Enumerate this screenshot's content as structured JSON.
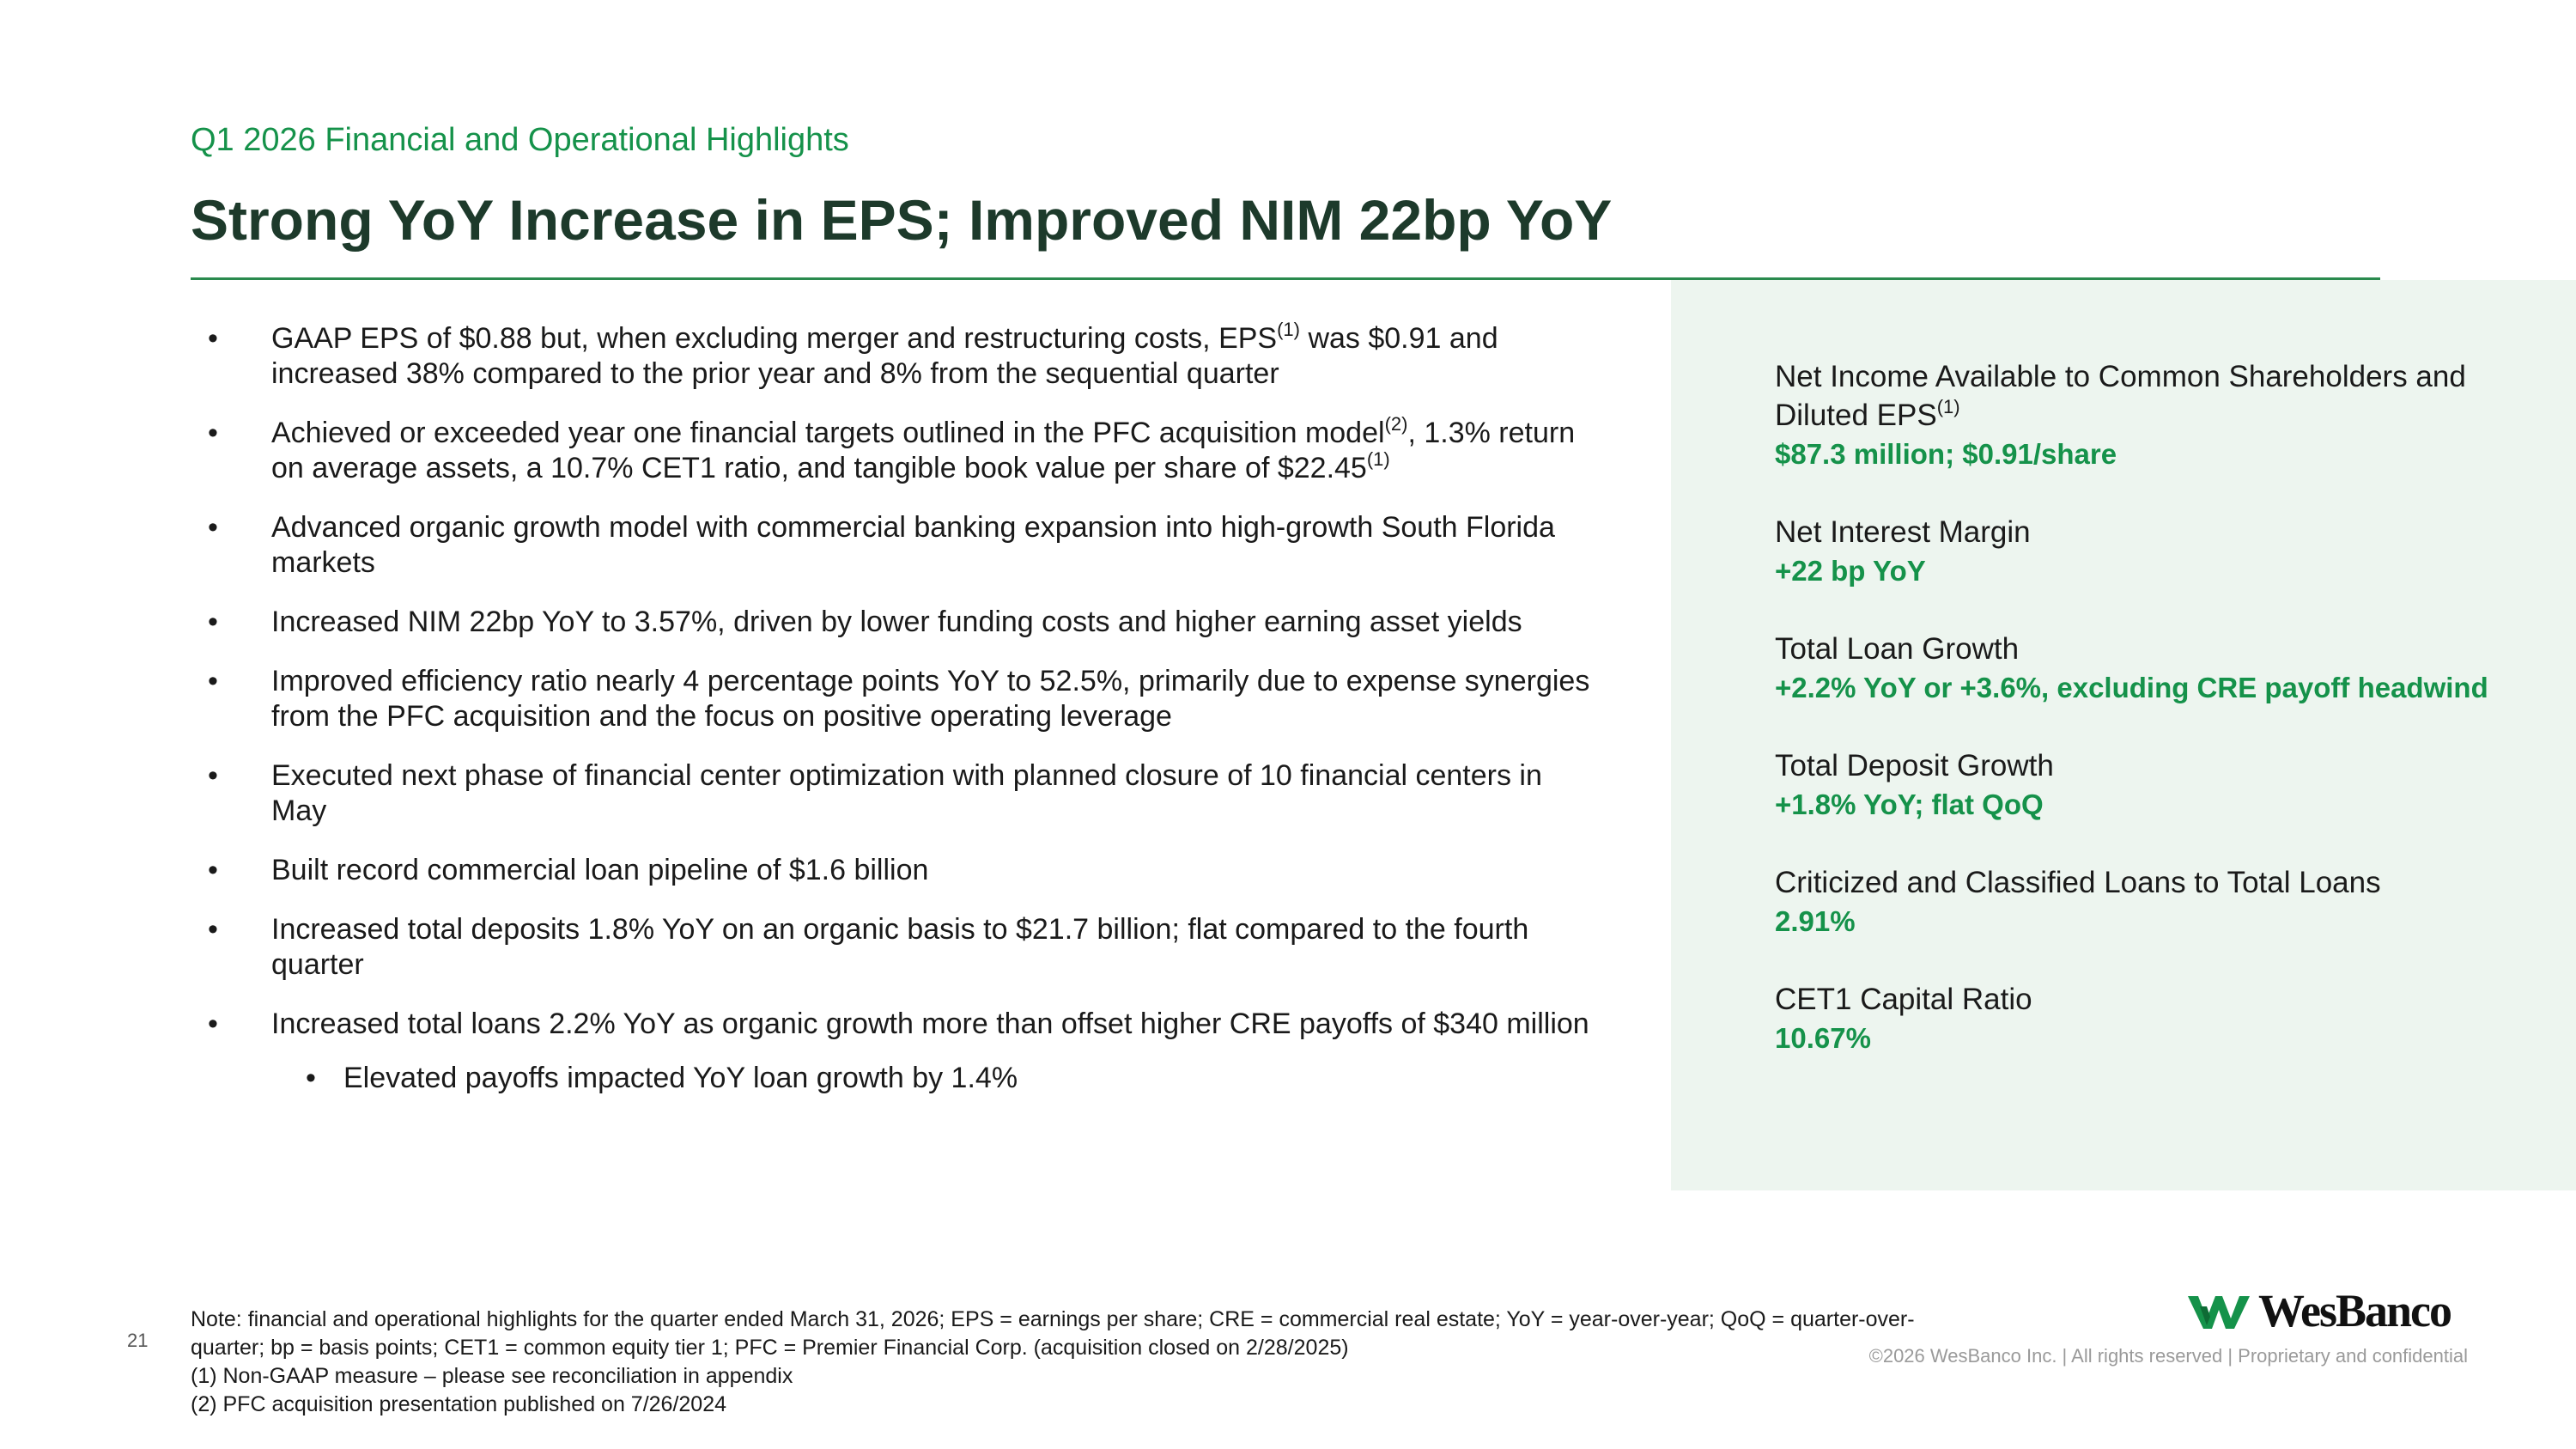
{
  "header": {
    "subtitle": "Q1 2026 Financial and Operational Highlights",
    "title": "Strong YoY Increase in EPS; Improved NIM 22bp YoY"
  },
  "bullets": [
    {
      "pre": "GAAP EPS of $0.88 but, when excluding merger and restructuring costs, EPS",
      "sup": "(1)",
      "post": " was $0.91 and increased 38% compared to the prior year and 8% from the sequential quarter"
    },
    {
      "pre": "Achieved or exceeded year one financial targets outlined in the PFC acquisition model",
      "sup": "(2)",
      "post": ", 1.3% return on average assets, a 10.7% CET1 ratio, and tangible book value per share of $22.45",
      "sup2": "(1)"
    },
    {
      "text": "Advanced organic growth model with commercial banking expansion into high-growth South Florida markets"
    },
    {
      "text": "Increased NIM 22bp YoY to 3.57%, driven by lower funding costs and higher earning asset yields"
    },
    {
      "text": "Improved efficiency ratio nearly 4 percentage points YoY to 52.5%, primarily due to expense synergies from the PFC acquisition and the focus on positive operating leverage"
    },
    {
      "text": "Executed next phase of financial center optimization with planned closure of 10 financial centers in May"
    },
    {
      "text": "Built record commercial loan pipeline of $1.6 billion"
    },
    {
      "text": "Increased total deposits 1.8% YoY on an organic basis to $21.7 billion; flat compared to the fourth quarter"
    },
    {
      "text": "Increased total loans 2.2% YoY as organic growth more than offset higher CRE payoffs of $340 million"
    }
  ],
  "sub_bullet": "Elevated payoffs impacted YoY loan growth by 1.4%",
  "metrics": [
    {
      "label": "Net Income Available to Common Shareholders and Diluted EPS",
      "sup": "(1)",
      "value": "$87.3 million; $0.91/share"
    },
    {
      "label": "Net Interest Margin",
      "value": "+22 bp YoY"
    },
    {
      "label": "Total Loan Growth",
      "value": "+2.2% YoY or +3.6%, excluding CRE payoff headwind"
    },
    {
      "label": "Total Deposit Growth",
      "value": "+1.8% YoY; flat QoQ"
    },
    {
      "label": "Criticized and Classified Loans to Total Loans",
      "value": "2.91%"
    },
    {
      "label": "CET1 Capital Ratio",
      "value": "10.67%"
    }
  ],
  "footer": {
    "page_number": "21",
    "notes": [
      "Note: financial and operational highlights for the quarter ended March 31, 2026; EPS = earnings per share; CRE = commercial real estate; YoY = year-over-year; QoQ = quarter-over-quarter; bp = basis points; CET1 = common equity tier 1; PFC = Premier Financial Corp. (acquisition closed on 2/28/2025)",
      "(1) Non-GAAP measure – please see reconciliation in appendix",
      "(2) PFC acquisition presentation published on 7/26/2024"
    ],
    "logo_text": "WesBanco",
    "copyright": "©2026 WesBanco Inc.  |  All rights reserved  |  Proprietary and confidential"
  },
  "colors": {
    "accent_green": "#15924a",
    "title_dark_green": "#1d3a2b",
    "panel_background": "#edf5ef",
    "rule": "#2a8a4e"
  }
}
